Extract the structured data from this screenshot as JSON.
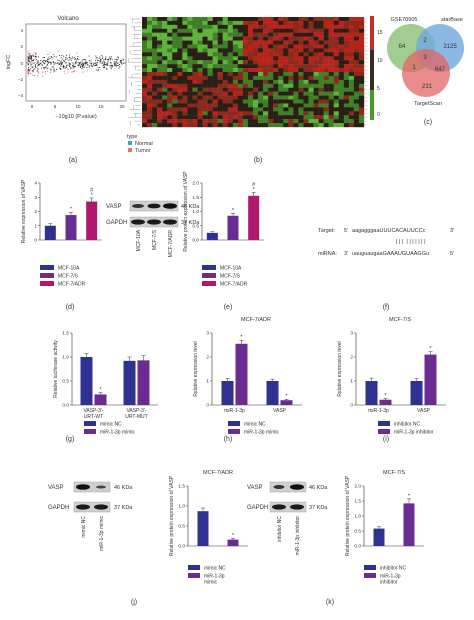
{
  "colors": {
    "navy": "#2e3192",
    "purple": "#6a2c91",
    "magenta": "#b0176e",
    "heat_red": "#c0312b",
    "heat_green": "#4c9a2a",
    "venn_blue": "#6fa8dc",
    "venn_green": "#93c47d",
    "venn_red": "#e06666"
  },
  "panel_labels": [
    "(a)",
    "(b)",
    "(c)",
    "(d)",
    "(e)",
    "(f)",
    "(g)",
    "(h)",
    "(i)",
    "(j)",
    "(k)"
  ],
  "volcano": {
    "title": "Volcano",
    "ylabel": "logFC",
    "xlabel": "−10g10 (P.value)",
    "x_ticks": [
      "0",
      "5",
      "10",
      "15",
      "20"
    ],
    "y_ticks": [
      "4",
      "2",
      "0",
      "−2",
      "−4"
    ]
  },
  "heatmap": {
    "scale_ticks": [
      "15",
      "10",
      "5",
      "0"
    ],
    "legend_title": "type",
    "legend_items": [
      {
        "label": "Normal",
        "color": "#4aa3a8"
      },
      {
        "label": "Tumor",
        "color": "#e57373"
      }
    ]
  },
  "venn": {
    "sets": [
      "GSE70905",
      "starBase",
      "TargetScan"
    ],
    "counts": [
      "64",
      "2",
      "2125",
      "3",
      "1",
      "647",
      "231"
    ]
  },
  "western_e": {
    "bands": [
      "VASP",
      "GAPDH"
    ],
    "kda": [
      "46 KDa",
      "37 KDa"
    ],
    "lanes": [
      "MCF-10A",
      "MCF-7/S",
      "MCF-7/ADR"
    ]
  },
  "western_j": {
    "bands": [
      "VASP",
      "GAPDH"
    ],
    "kda": [
      "46 KDa",
      "37 KDa"
    ],
    "lanes": [
      "mimic NC",
      "miR-1-3p mimic"
    ]
  },
  "western_k": {
    "bands": [
      "VASP",
      "GAPDH"
    ],
    "kda": [
      "46 KDa",
      "37 KDa"
    ],
    "lanes": [
      "inhibitor NC",
      "miR-1-3p inhibitor"
    ]
  },
  "binding": {
    "target_label": "Target:",
    "target_5": "5'",
    "target_seq": "aagagggaaUUUCACAUUCCc",
    "target_3": "3'",
    "pairs": "| | |  | | | | | | |",
    "mirna_label": "miRNA:",
    "mirna_3": "3'",
    "mirna_seq": "uauguaugaaGAAAUGUAAGGu",
    "mirna_5": "5'"
  },
  "chart_data": [
    {
      "id": "d",
      "type": "bar",
      "ylabel": "Relative expression of VASP",
      "categories": [
        "MCF-10A",
        "MCF-7/S",
        "MCF-7/ADR"
      ],
      "values": [
        1.0,
        1.75,
        2.7
      ],
      "errors": [
        0.15,
        0.2,
        0.25
      ],
      "marks": [
        "",
        "*",
        "#\n*"
      ],
      "ylim": [
        0,
        4
      ],
      "y_ticks": [
        0,
        1,
        2,
        3,
        4
      ],
      "legend": [
        "MCF-10A",
        "MCF-7/S",
        "MCF-7/ADR"
      ]
    },
    {
      "id": "e",
      "type": "bar",
      "ylabel": "Relative protein expression of VASP",
      "categories": [
        "MCF-10A",
        "MCF-7/S",
        "MCF-7/ADR"
      ],
      "values": [
        0.25,
        0.85,
        1.55
      ],
      "errors": [
        0.04,
        0.08,
        0.12
      ],
      "marks": [
        "",
        "*",
        "#\n*"
      ],
      "ylim": [
        0,
        2
      ],
      "y_ticks": [
        0.0,
        0.5,
        1.0,
        1.5,
        2.0
      ],
      "legend": [
        "MCF-10A",
        "MCF-7/S",
        "MCF-7/ADR"
      ]
    },
    {
      "id": "g",
      "type": "bar",
      "ylabel": "Relative luciferase activity",
      "categories": [
        "VASP-3'-URT-WT",
        "VASP-3'-URT-MUT"
      ],
      "series": [
        {
          "name": "mimic NC",
          "values": [
            1.0,
            0.92
          ],
          "errors": [
            0.07,
            0.08
          ]
        },
        {
          "name": "miR-1-3p mimic",
          "values": [
            0.22,
            0.93
          ],
          "errors": [
            0.04,
            0.1
          ]
        }
      ],
      "marks": [
        "*",
        ""
      ],
      "ylim": [
        0,
        1.5
      ],
      "y_ticks": [
        0.0,
        0.5,
        1.0,
        1.5
      ]
    },
    {
      "id": "h",
      "type": "bar",
      "title": "MCF-7/ADR",
      "ylabel": "Relative expression level",
      "categories": [
        "miR-1-3p",
        "VASP"
      ],
      "series": [
        {
          "name": "mimic NC",
          "values": [
            1.0,
            1.0
          ],
          "errors": [
            0.1,
            0.08
          ]
        },
        {
          "name": "miR-1-3p mimic",
          "values": [
            2.55,
            0.2
          ],
          "errors": [
            0.15,
            0.04
          ]
        }
      ],
      "marks": [
        "*",
        "*"
      ],
      "ylim": [
        0,
        3
      ],
      "y_ticks": [
        0,
        1,
        2,
        3
      ]
    },
    {
      "id": "i",
      "type": "bar",
      "title": "MCF-7/S",
      "ylabel": "Relative expression level",
      "categories": [
        "miR-1-3p",
        "VASP"
      ],
      "series": [
        {
          "name": "inhibitor NC",
          "values": [
            1.0,
            1.0
          ],
          "errors": [
            0.12,
            0.1
          ]
        },
        {
          "name": "miR-1-3p inhibitor",
          "values": [
            0.22,
            2.1
          ],
          "errors": [
            0.05,
            0.12
          ]
        }
      ],
      "marks": [
        "*",
        "*"
      ],
      "ylim": [
        0,
        3
      ],
      "y_ticks": [
        0,
        1,
        2,
        3
      ]
    },
    {
      "id": "j",
      "type": "bar",
      "title": "MCF-7/ADR",
      "ylabel": "Relative protein expression of VASP",
      "categories": [
        "mimic NC",
        "miR-1-3p mimic"
      ],
      "values": [
        0.87,
        0.16
      ],
      "errors": [
        0.08,
        0.03
      ],
      "marks": [
        "",
        "*"
      ],
      "ylim": [
        0,
        1.5
      ],
      "y_ticks": [
        0.0,
        0.5,
        1.0,
        1.5
      ],
      "legend": [
        "mimic NC",
        "miR-1-3p mimic"
      ]
    },
    {
      "id": "k",
      "type": "bar",
      "title": "MCF-7/S",
      "ylabel": "Relative protein expression of VASP",
      "categories": [
        "inhibitor NC",
        "miR-1-3p inhibitor"
      ],
      "values": [
        0.58,
        1.42
      ],
      "errors": [
        0.06,
        0.15
      ],
      "marks": [
        "",
        "*"
      ],
      "ylim": [
        0,
        2
      ],
      "y_ticks": [
        0.0,
        0.5,
        1.0,
        1.5,
        2.0
      ],
      "legend": [
        "inhibitor NC",
        "miR-1-3p inhibitor"
      ]
    }
  ]
}
